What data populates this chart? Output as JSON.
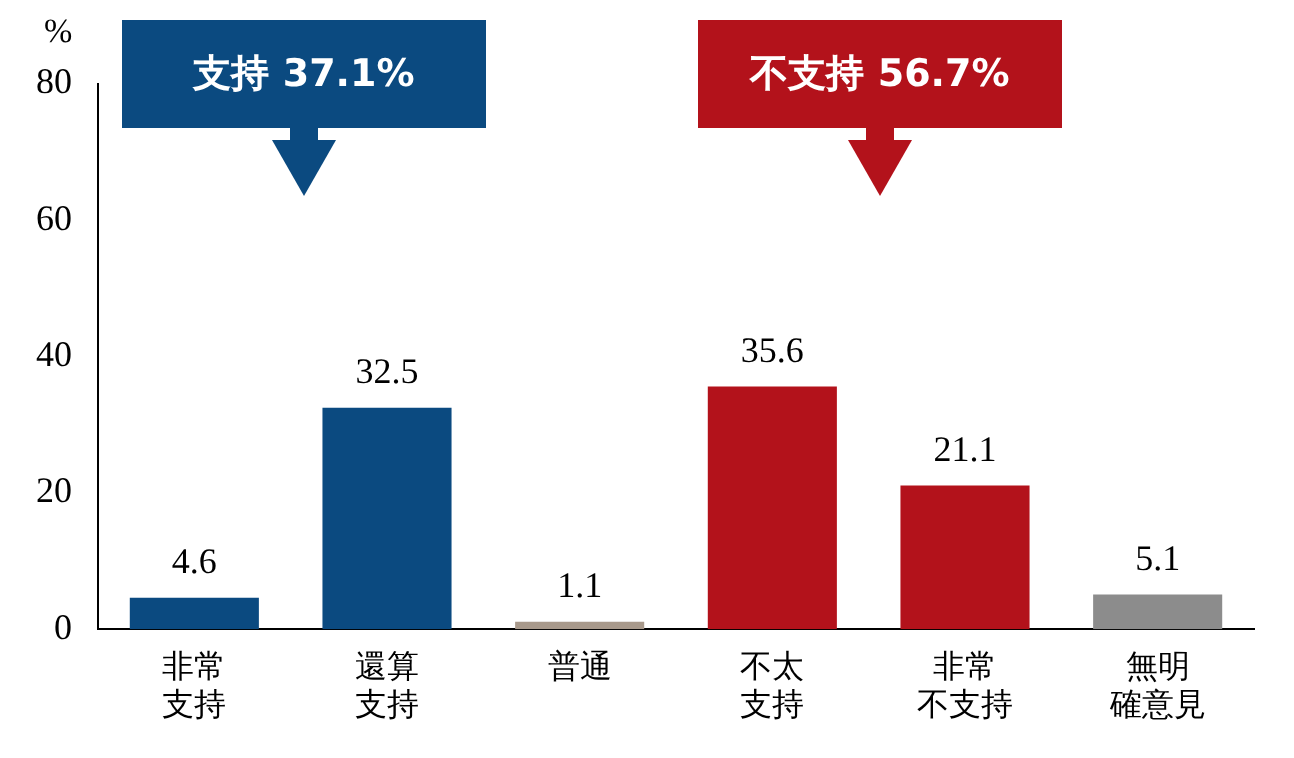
{
  "chart_data": {
    "type": "bar",
    "ylabel": "%",
    "categories": [
      "非常支持",
      "還算支持",
      "普通",
      "不太支持",
      "非常不支持",
      "無明確意見"
    ],
    "values": [
      4.6,
      32.5,
      1.1,
      35.6,
      21.1,
      5.1
    ],
    "colors": [
      "#0b4a80",
      "#0b4a80",
      "#a8998b",
      "#b3121b",
      "#b3121b",
      "#8c8c8c"
    ],
    "ylim": [
      0,
      80
    ],
    "yticks": [
      0,
      20,
      40,
      60,
      80
    ],
    "grid": false,
    "legend": false,
    "data_labels": true,
    "annotations": [
      "支持 37.1%",
      "不支持 56.7%"
    ]
  }
}
